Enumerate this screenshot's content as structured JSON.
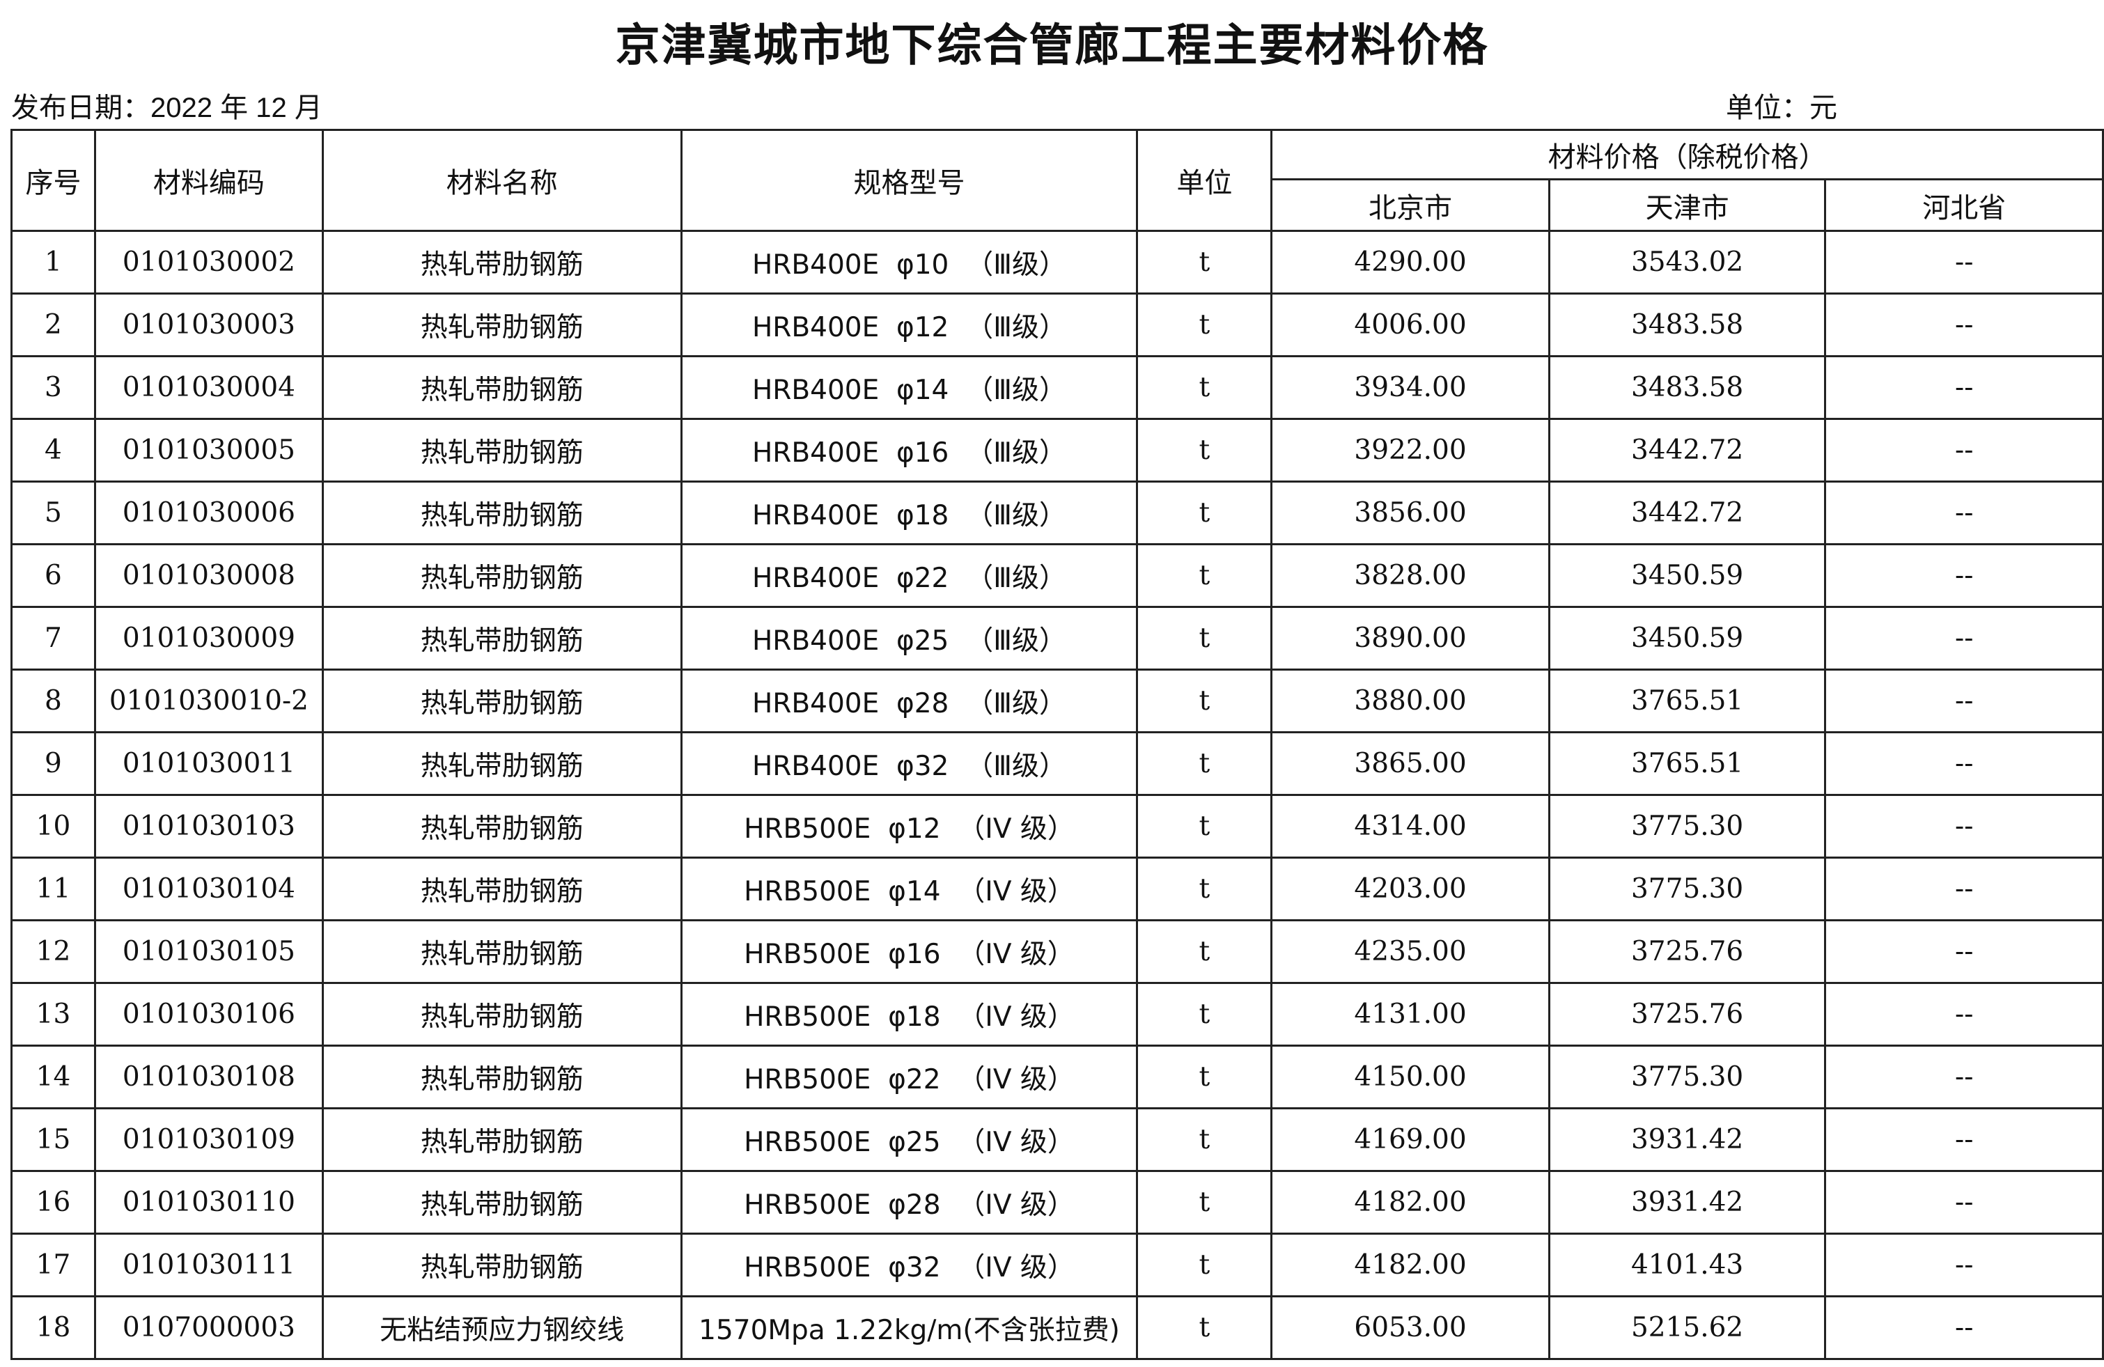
{
  "title": "京津冀城市地下综合管廊工程主要材料价格",
  "publish_date": "发布日期：2022 年 12 月",
  "unit_note": "单位：元",
  "headers": {
    "seq": "序号",
    "code": "材料编码",
    "name": "材料名称",
    "spec": "规格型号",
    "unit": "单位",
    "price_group": "材料价格（除税价格）",
    "beijing": "北京市",
    "tianjin": "天津市",
    "hebei": "河北省"
  },
  "rows": [
    {
      "seq": "1",
      "code": "0101030002",
      "name": "热轧带肋钢筋",
      "spec": "HRB400E  φ10  （Ⅲ级）",
      "unit": "t",
      "beijing": "4290.00",
      "tianjin": "3543.02",
      "hebei": "--"
    },
    {
      "seq": "2",
      "code": "0101030003",
      "name": "热轧带肋钢筋",
      "spec": "HRB400E  φ12  （Ⅲ级）",
      "unit": "t",
      "beijing": "4006.00",
      "tianjin": "3483.58",
      "hebei": "--"
    },
    {
      "seq": "3",
      "code": "0101030004",
      "name": "热轧带肋钢筋",
      "spec": "HRB400E  φ14  （Ⅲ级）",
      "unit": "t",
      "beijing": "3934.00",
      "tianjin": "3483.58",
      "hebei": "--"
    },
    {
      "seq": "4",
      "code": "0101030005",
      "name": "热轧带肋钢筋",
      "spec": "HRB400E  φ16  （Ⅲ级）",
      "unit": "t",
      "beijing": "3922.00",
      "tianjin": "3442.72",
      "hebei": "--"
    },
    {
      "seq": "5",
      "code": "0101030006",
      "name": "热轧带肋钢筋",
      "spec": "HRB400E  φ18  （Ⅲ级）",
      "unit": "t",
      "beijing": "3856.00",
      "tianjin": "3442.72",
      "hebei": "--"
    },
    {
      "seq": "6",
      "code": "0101030008",
      "name": "热轧带肋钢筋",
      "spec": "HRB400E  φ22  （Ⅲ级）",
      "unit": "t",
      "beijing": "3828.00",
      "tianjin": "3450.59",
      "hebei": "--"
    },
    {
      "seq": "7",
      "code": "0101030009",
      "name": "热轧带肋钢筋",
      "spec": "HRB400E  φ25  （Ⅲ级）",
      "unit": "t",
      "beijing": "3890.00",
      "tianjin": "3450.59",
      "hebei": "--"
    },
    {
      "seq": "8",
      "code": "0101030010-2",
      "name": "热轧带肋钢筋",
      "spec": "HRB400E  φ28  （Ⅲ级）",
      "unit": "t",
      "beijing": "3880.00",
      "tianjin": "3765.51",
      "hebei": "--"
    },
    {
      "seq": "9",
      "code": "0101030011",
      "name": "热轧带肋钢筋",
      "spec": "HRB400E  φ32  （Ⅲ级）",
      "unit": "t",
      "beijing": "3865.00",
      "tianjin": "3765.51",
      "hebei": "--"
    },
    {
      "seq": "10",
      "code": "0101030103",
      "name": "热轧带肋钢筋",
      "spec": "HRB500E  φ12  （IV 级）",
      "unit": "t",
      "beijing": "4314.00",
      "tianjin": "3775.30",
      "hebei": "--"
    },
    {
      "seq": "11",
      "code": "0101030104",
      "name": "热轧带肋钢筋",
      "spec": "HRB500E  φ14  （IV 级）",
      "unit": "t",
      "beijing": "4203.00",
      "tianjin": "3775.30",
      "hebei": "--"
    },
    {
      "seq": "12",
      "code": "0101030105",
      "name": "热轧带肋钢筋",
      "spec": "HRB500E  φ16  （IV 级）",
      "unit": "t",
      "beijing": "4235.00",
      "tianjin": "3725.76",
      "hebei": "--"
    },
    {
      "seq": "13",
      "code": "0101030106",
      "name": "热轧带肋钢筋",
      "spec": "HRB500E  φ18  （IV 级）",
      "unit": "t",
      "beijing": "4131.00",
      "tianjin": "3725.76",
      "hebei": "--"
    },
    {
      "seq": "14",
      "code": "0101030108",
      "name": "热轧带肋钢筋",
      "spec": "HRB500E  φ22  （IV 级）",
      "unit": "t",
      "beijing": "4150.00",
      "tianjin": "3775.30",
      "hebei": "--"
    },
    {
      "seq": "15",
      "code": "0101030109",
      "name": "热轧带肋钢筋",
      "spec": "HRB500E  φ25  （IV 级）",
      "unit": "t",
      "beijing": "4169.00",
      "tianjin": "3931.42",
      "hebei": "--"
    },
    {
      "seq": "16",
      "code": "0101030110",
      "name": "热轧带肋钢筋",
      "spec": "HRB500E  φ28  （IV 级）",
      "unit": "t",
      "beijing": "4182.00",
      "tianjin": "3931.42",
      "hebei": "--"
    },
    {
      "seq": "17",
      "code": "0101030111",
      "name": "热轧带肋钢筋",
      "spec": "HRB500E  φ32  （IV 级）",
      "unit": "t",
      "beijing": "4182.00",
      "tianjin": "4101.43",
      "hebei": "--"
    },
    {
      "seq": "18",
      "code": "0107000003",
      "name": "无粘结预应力钢绞线",
      "spec": "1570Mpa 1.22kg/m(不含张拉费)",
      "unit": "t",
      "beijing": "6053.00",
      "tianjin": "5215.62",
      "hebei": "--"
    }
  ]
}
